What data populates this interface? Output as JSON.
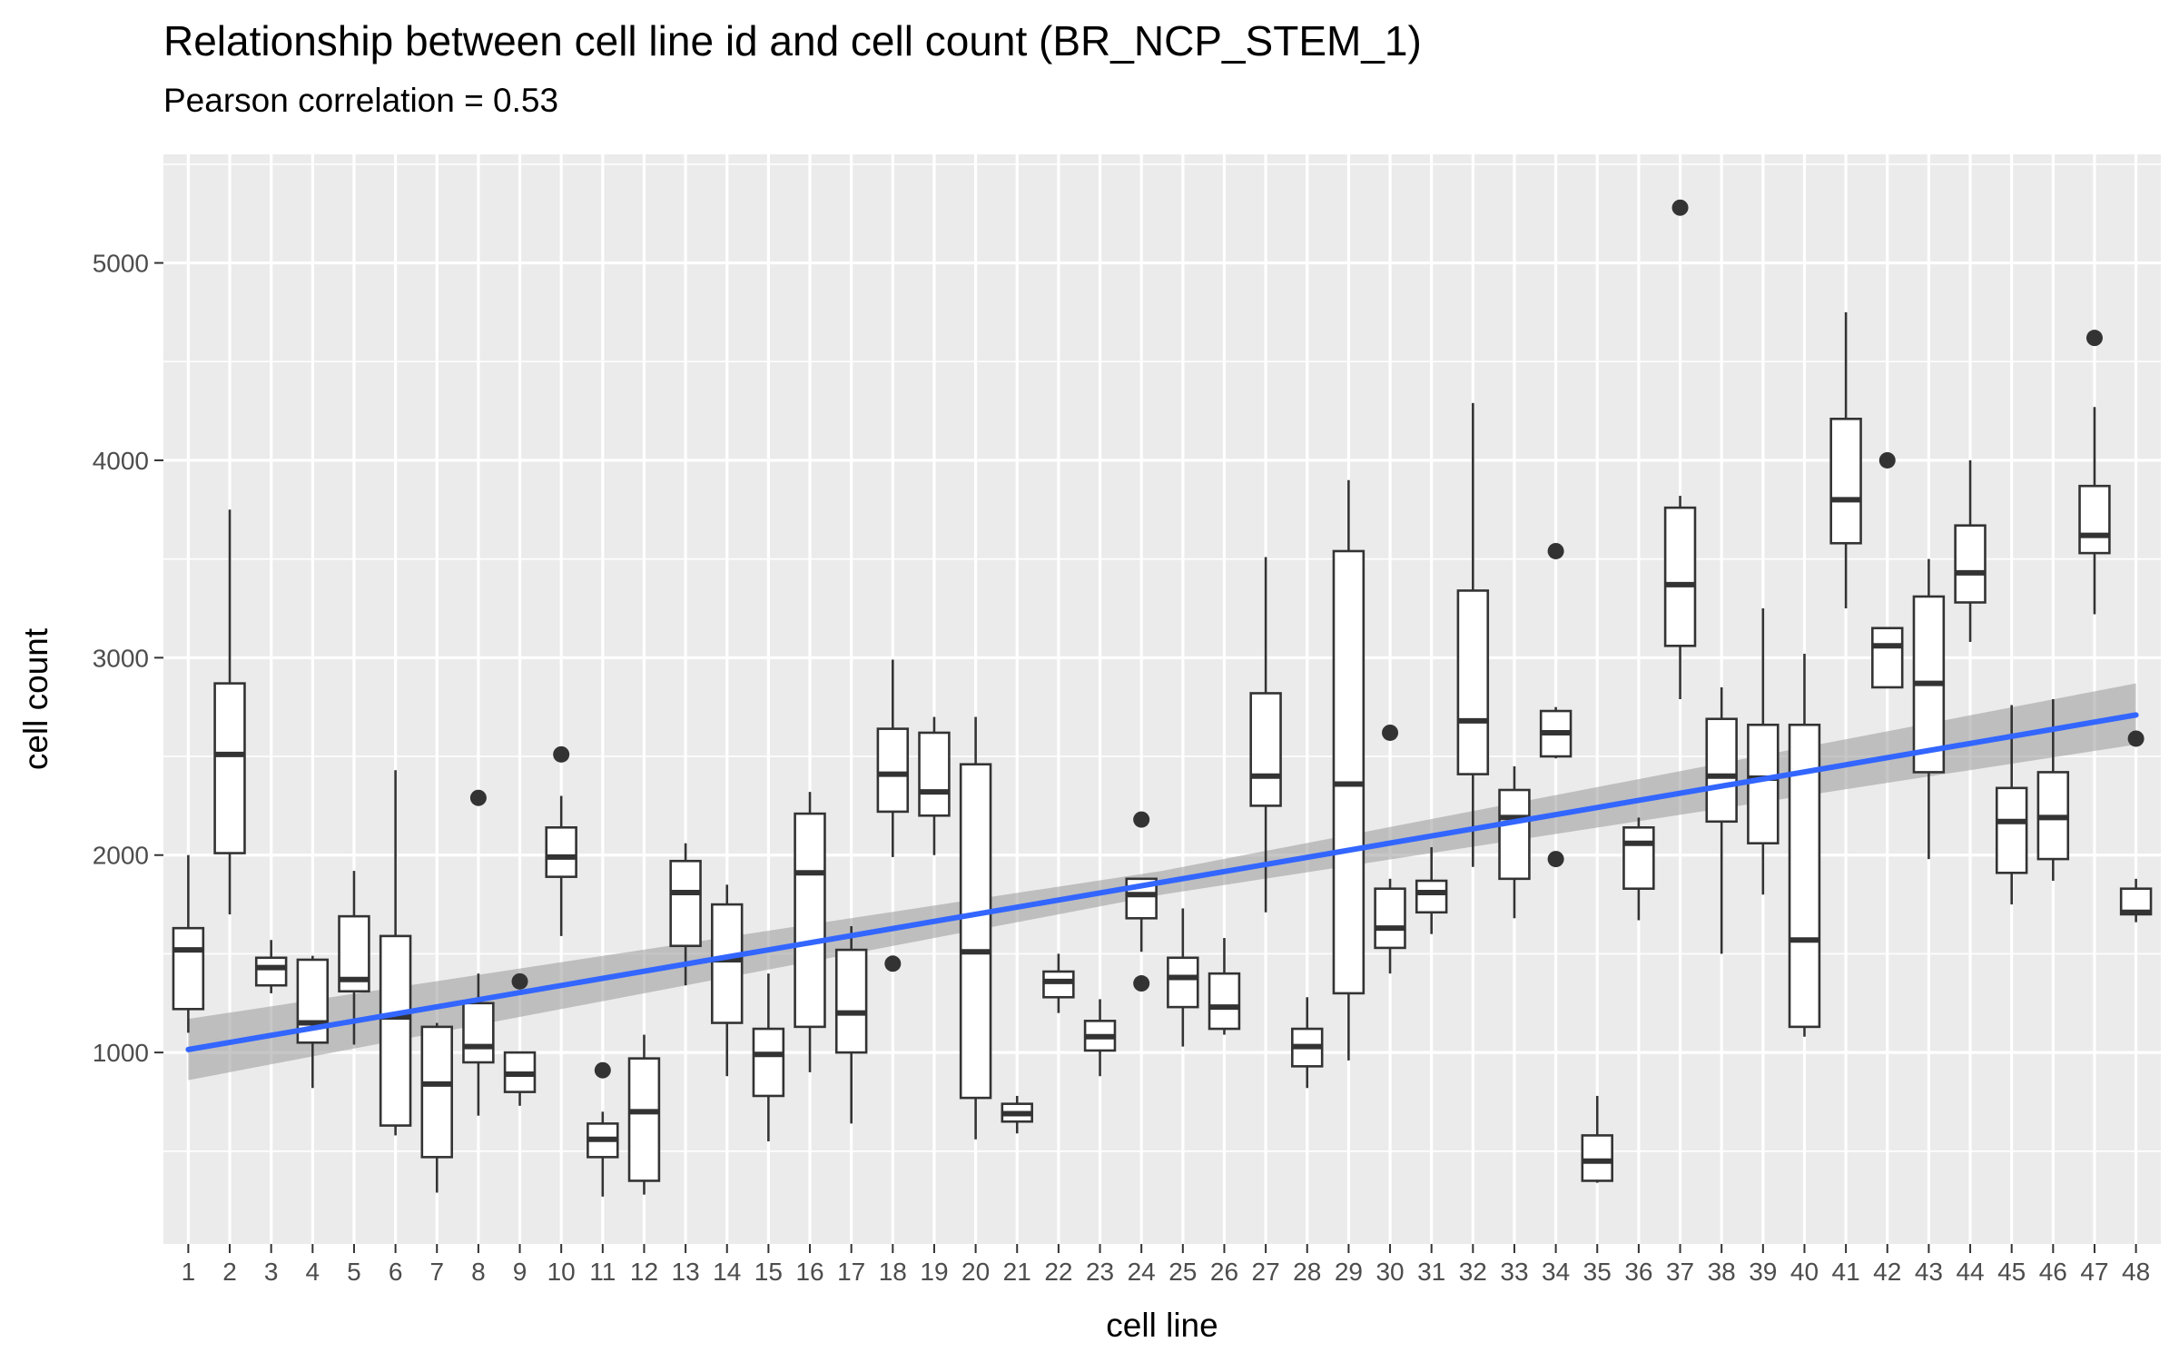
{
  "chart_data": {
    "type": "boxplot",
    "title": "Relationship between cell line id and cell count (BR_NCP_STEM_1)",
    "subtitle": "Pearson correlation = 0.53",
    "xlabel": "cell line",
    "ylabel": "cell count",
    "categories": [
      "1",
      "2",
      "3",
      "4",
      "5",
      "6",
      "7",
      "8",
      "9",
      "10",
      "11",
      "12",
      "13",
      "14",
      "15",
      "16",
      "17",
      "18",
      "19",
      "20",
      "21",
      "22",
      "23",
      "24",
      "25",
      "26",
      "27",
      "28",
      "29",
      "30",
      "31",
      "32",
      "33",
      "34",
      "35",
      "36",
      "37",
      "38",
      "39",
      "40",
      "41",
      "42",
      "43",
      "44",
      "45",
      "46",
      "47",
      "48"
    ],
    "ylim": [
      30,
      5550
    ],
    "yticks": [
      1000,
      2000,
      3000,
      4000,
      5000
    ],
    "grid": true,
    "boxes": [
      {
        "min": 1100,
        "q1": 1220,
        "median": 1520,
        "q3": 1630,
        "max": 2000,
        "outliers": []
      },
      {
        "min": 1700,
        "q1": 2010,
        "median": 2510,
        "q3": 2870,
        "max": 3750,
        "outliers": []
      },
      {
        "min": 1300,
        "q1": 1340,
        "median": 1430,
        "q3": 1480,
        "max": 1570,
        "outliers": []
      },
      {
        "min": 820,
        "q1": 1050,
        "median": 1150,
        "q3": 1470,
        "max": 1490,
        "outliers": []
      },
      {
        "min": 1040,
        "q1": 1310,
        "median": 1370,
        "q3": 1690,
        "max": 1920,
        "outliers": []
      },
      {
        "min": 580,
        "q1": 630,
        "median": 1180,
        "q3": 1590,
        "max": 2430,
        "outliers": []
      },
      {
        "min": 290,
        "q1": 470,
        "median": 840,
        "q3": 1130,
        "max": 1150,
        "outliers": []
      },
      {
        "min": 680,
        "q1": 950,
        "median": 1030,
        "q3": 1250,
        "max": 1400,
        "outliers": [
          2290
        ]
      },
      {
        "min": 730,
        "q1": 800,
        "median": 890,
        "q3": 1000,
        "max": 1000,
        "outliers": [
          1360
        ]
      },
      {
        "min": 1590,
        "q1": 1890,
        "median": 1990,
        "q3": 2140,
        "max": 2300,
        "outliers": [
          2510
        ]
      },
      {
        "min": 270,
        "q1": 470,
        "median": 560,
        "q3": 640,
        "max": 700,
        "outliers": [
          910
        ]
      },
      {
        "min": 280,
        "q1": 350,
        "median": 700,
        "q3": 970,
        "max": 1090,
        "outliers": []
      },
      {
        "min": 1340,
        "q1": 1540,
        "median": 1810,
        "q3": 1970,
        "max": 2060,
        "outliers": []
      },
      {
        "min": 880,
        "q1": 1150,
        "median": 1470,
        "q3": 1750,
        "max": 1850,
        "outliers": []
      },
      {
        "min": 550,
        "q1": 780,
        "median": 990,
        "q3": 1120,
        "max": 1400,
        "outliers": []
      },
      {
        "min": 900,
        "q1": 1130,
        "median": 1910,
        "q3": 2210,
        "max": 2320,
        "outliers": []
      },
      {
        "min": 640,
        "q1": 1000,
        "median": 1200,
        "q3": 1520,
        "max": 1640,
        "outliers": []
      },
      {
        "min": 1990,
        "q1": 2220,
        "median": 2410,
        "q3": 2640,
        "max": 2990,
        "outliers": [
          1450
        ]
      },
      {
        "min": 2000,
        "q1": 2200,
        "median": 2320,
        "q3": 2620,
        "max": 2700,
        "outliers": []
      },
      {
        "min": 560,
        "q1": 770,
        "median": 1510,
        "q3": 2460,
        "max": 2700,
        "outliers": []
      },
      {
        "min": 590,
        "q1": 650,
        "median": 690,
        "q3": 740,
        "max": 780,
        "outliers": []
      },
      {
        "min": 1200,
        "q1": 1280,
        "median": 1360,
        "q3": 1410,
        "max": 1500,
        "outliers": []
      },
      {
        "min": 880,
        "q1": 1010,
        "median": 1080,
        "q3": 1160,
        "max": 1270,
        "outliers": []
      },
      {
        "min": 1510,
        "q1": 1680,
        "median": 1800,
        "q3": 1880,
        "max": 1880,
        "outliers": [
          2180,
          1350
        ]
      },
      {
        "min": 1030,
        "q1": 1230,
        "median": 1380,
        "q3": 1480,
        "max": 1730,
        "outliers": []
      },
      {
        "min": 1090,
        "q1": 1120,
        "median": 1230,
        "q3": 1400,
        "max": 1580,
        "outliers": []
      },
      {
        "min": 1710,
        "q1": 2250,
        "median": 2400,
        "q3": 2820,
        "max": 3510,
        "outliers": []
      },
      {
        "min": 820,
        "q1": 930,
        "median": 1030,
        "q3": 1120,
        "max": 1280,
        "outliers": []
      },
      {
        "min": 960,
        "q1": 1300,
        "median": 2360,
        "q3": 3540,
        "max": 3900,
        "outliers": []
      },
      {
        "min": 1400,
        "q1": 1530,
        "median": 1630,
        "q3": 1830,
        "max": 1880,
        "outliers": [
          2620
        ]
      },
      {
        "min": 1600,
        "q1": 1710,
        "median": 1810,
        "q3": 1870,
        "max": 2040,
        "outliers": []
      },
      {
        "min": 1940,
        "q1": 2410,
        "median": 2680,
        "q3": 3340,
        "max": 4290,
        "outliers": []
      },
      {
        "min": 1680,
        "q1": 1880,
        "median": 2190,
        "q3": 2330,
        "max": 2450,
        "outliers": []
      },
      {
        "min": 2490,
        "q1": 2500,
        "median": 2620,
        "q3": 2730,
        "max": 2750,
        "outliers": [
          3540,
          1980
        ]
      },
      {
        "min": 340,
        "q1": 350,
        "median": 450,
        "q3": 580,
        "max": 780,
        "outliers": []
      },
      {
        "min": 1670,
        "q1": 1830,
        "median": 2060,
        "q3": 2140,
        "max": 2190,
        "outliers": []
      },
      {
        "min": 2790,
        "q1": 3060,
        "median": 3370,
        "q3": 3760,
        "max": 3820,
        "outliers": [
          5280
        ]
      },
      {
        "min": 1500,
        "q1": 2170,
        "median": 2400,
        "q3": 2690,
        "max": 2850,
        "outliers": []
      },
      {
        "min": 1800,
        "q1": 2060,
        "median": 2390,
        "q3": 2660,
        "max": 3250,
        "outliers": []
      },
      {
        "min": 1080,
        "q1": 1130,
        "median": 1570,
        "q3": 2660,
        "max": 3020,
        "outliers": []
      },
      {
        "min": 3250,
        "q1": 3580,
        "median": 3800,
        "q3": 4210,
        "max": 4750,
        "outliers": []
      },
      {
        "min": 2850,
        "q1": 2850,
        "median": 3060,
        "q3": 3150,
        "max": 3150,
        "outliers": [
          4000
        ]
      },
      {
        "min": 1980,
        "q1": 2420,
        "median": 2870,
        "q3": 3310,
        "max": 3500,
        "outliers": []
      },
      {
        "min": 3080,
        "q1": 3280,
        "median": 3430,
        "q3": 3670,
        "max": 4000,
        "outliers": []
      },
      {
        "min": 1750,
        "q1": 1910,
        "median": 2170,
        "q3": 2340,
        "max": 2760,
        "outliers": []
      },
      {
        "min": 1870,
        "q1": 1980,
        "median": 2190,
        "q3": 2420,
        "max": 2790,
        "outliers": []
      },
      {
        "min": 3220,
        "q1": 3530,
        "median": 3620,
        "q3": 3870,
        "max": 4270,
        "outliers": [
          4620
        ]
      },
      {
        "min": 1660,
        "q1": 1700,
        "median": 1710,
        "q3": 1830,
        "max": 1880,
        "outliers": [
          2590
        ]
      }
    ],
    "trend_line": {
      "color": "#3366ff",
      "x_start": 1,
      "y_start": 1015,
      "x_end": 48,
      "y_end": 2710
    },
    "confidence_band": {
      "color": "#999999",
      "lower": [
        [
          1,
          860
        ],
        [
          24.5,
          1800
        ],
        [
          48,
          2560
        ]
      ],
      "upper": [
        [
          1,
          1170
        ],
        [
          24.5,
          1920
        ],
        [
          48,
          2870
        ]
      ]
    },
    "colors": {
      "panel_background": "#ebebeb",
      "grid": "#ffffff",
      "box_stroke": "#333333",
      "box_fill": "#ffffff"
    }
  }
}
